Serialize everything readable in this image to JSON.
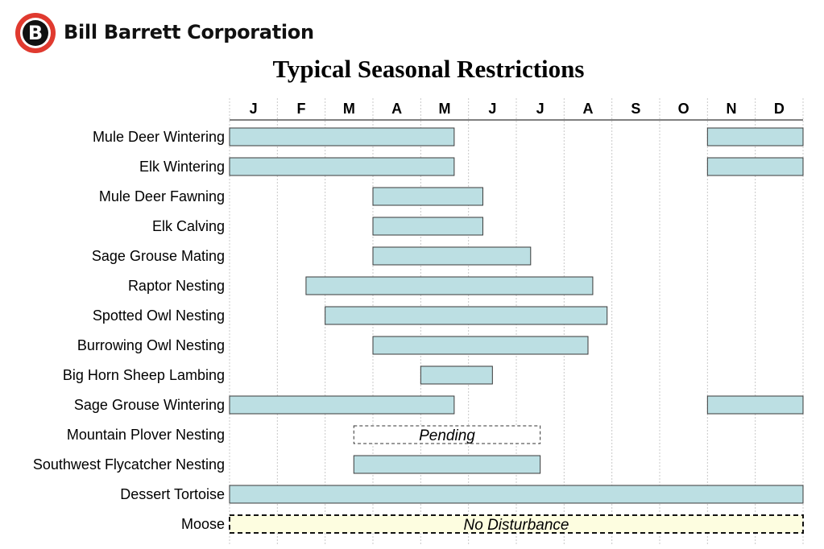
{
  "header": {
    "company": "Bill Barrett Corporation",
    "logo_letter": "B",
    "logo_icon": "bill-barrett-logo-icon"
  },
  "colors": {
    "bar_fill": "#bcdfe3",
    "bar_stroke": "#3a3a3a",
    "no_disturbance_fill": "#fdfde0",
    "grid": "#c8c8c8",
    "logo_red": "#e03a2f"
  },
  "chart_data": {
    "type": "gantt",
    "title": "Typical Seasonal Restrictions",
    "months": [
      "J",
      "F",
      "M",
      "A",
      "M",
      "J",
      "J",
      "A",
      "S",
      "O",
      "N",
      "D"
    ],
    "x_unit": "month (0 = Jan 1, 12 = Dec 31)",
    "xlim": [
      0,
      12
    ],
    "grid": true,
    "rows": [
      {
        "label": "Mule Deer Wintering",
        "periods": [
          {
            "start": 0.0,
            "end": 4.7
          },
          {
            "start": 10.0,
            "end": 12.0
          }
        ]
      },
      {
        "label": "Elk Wintering",
        "periods": [
          {
            "start": 0.0,
            "end": 4.7
          },
          {
            "start": 10.0,
            "end": 12.0
          }
        ]
      },
      {
        "label": "Mule Deer Fawning",
        "periods": [
          {
            "start": 3.0,
            "end": 5.3
          }
        ]
      },
      {
        "label": "Elk Calving",
        "periods": [
          {
            "start": 3.0,
            "end": 5.3
          }
        ]
      },
      {
        "label": "Sage Grouse Mating",
        "periods": [
          {
            "start": 3.0,
            "end": 6.3
          }
        ]
      },
      {
        "label": "Raptor Nesting",
        "periods": [
          {
            "start": 1.6,
            "end": 7.6
          }
        ]
      },
      {
        "label": "Spotted Owl Nesting",
        "periods": [
          {
            "start": 2.0,
            "end": 7.9
          }
        ]
      },
      {
        "label": "Burrowing Owl Nesting",
        "periods": [
          {
            "start": 3.0,
            "end": 7.5
          }
        ]
      },
      {
        "label": "Big Horn Sheep Lambing",
        "periods": [
          {
            "start": 4.0,
            "end": 5.5
          }
        ]
      },
      {
        "label": "Sage Grouse Wintering",
        "periods": [
          {
            "start": 0.0,
            "end": 4.7
          },
          {
            "start": 10.0,
            "end": 12.0
          }
        ]
      },
      {
        "label": "Mountain Plover Nesting",
        "periods": [
          {
            "start": 2.6,
            "end": 6.5,
            "style": "dashed",
            "note": "Pending"
          }
        ]
      },
      {
        "label": "Southwest Flycatcher Nesting",
        "periods": [
          {
            "start": 2.6,
            "end": 6.5
          }
        ]
      },
      {
        "label": "Dessert Tortoise",
        "periods": [
          {
            "start": 0.0,
            "end": 12.0
          }
        ]
      },
      {
        "label": "Moose",
        "periods": [
          {
            "start": 0.0,
            "end": 12.0,
            "style": "dashed-highlight",
            "note": "No Disturbance"
          }
        ]
      }
    ]
  }
}
